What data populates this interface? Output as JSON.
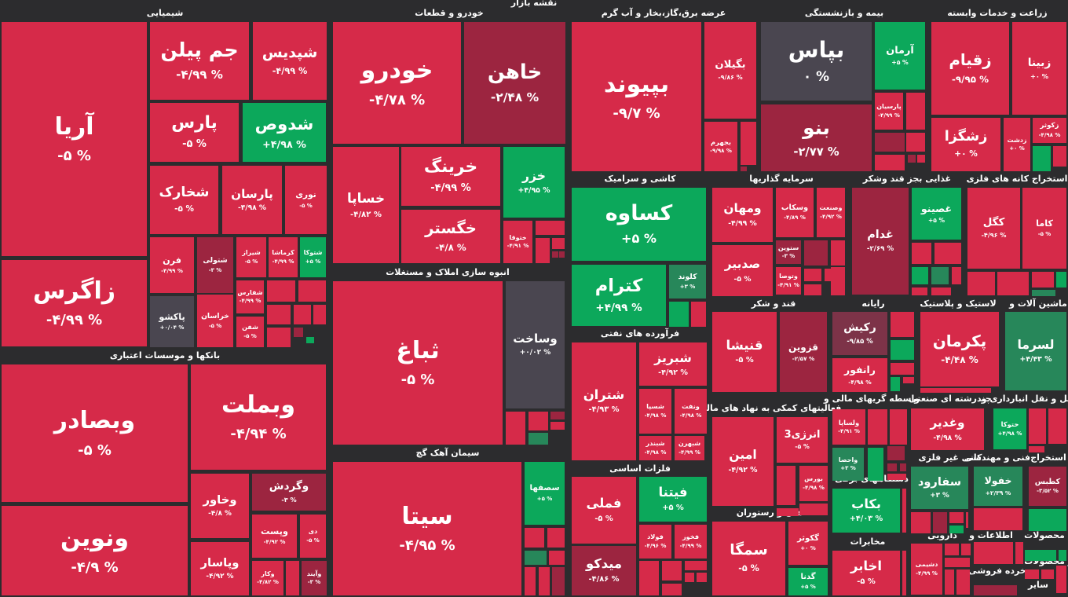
{
  "header": {
    "title": "نقشه بازار"
  },
  "colors": {
    "red": "#d62a49",
    "darkred": "#9c2540",
    "mauve": "#7d3348",
    "gray": "#4a4650",
    "green": "#0ca85b",
    "darkgreen": "#27875a",
    "background": "#2c2c2e"
  },
  "sectors": [
    {
      "title": "شیمیایی"
    },
    {
      "title": "خودرو و قطعات"
    },
    {
      "title": "عرضه برق،گاز،بخار و آب گرم"
    },
    {
      "title": "بیمه و بازنشستگی"
    },
    {
      "title": "زراعت و خدمات وابسته"
    },
    {
      "title": "بانکها و موسسات اعتباری"
    },
    {
      "title": "انبوه سازی املاک و مستغلات"
    },
    {
      "title": "سیمان آهک گچ"
    },
    {
      "title": "کاشی و سرامیک"
    },
    {
      "title": "فرآورده های نفتی"
    },
    {
      "title": "فلزات اساسی"
    },
    {
      "title": "سرمایه گذاریها"
    },
    {
      "title": "غذایی بجز قند وشکر"
    },
    {
      "title": "استخراج کانه های فلزی"
    },
    {
      "title": "قند و شکر"
    },
    {
      "title": "رایانه"
    },
    {
      "title": "لاستیک و پلاستیک"
    },
    {
      "title": "ماشین آلات و"
    },
    {
      "title": "فعالیتهای کمکی به نهاد های مالی"
    },
    {
      "title": "واسطه گریهای مالی و"
    },
    {
      "title": "چندرشته ای صنعتی"
    },
    {
      "title": "حمل و نقل انبارداری و"
    },
    {
      "title": "هتل و رستوران"
    },
    {
      "title": "دستگاههای برقی"
    },
    {
      "title": "مخابرات"
    },
    {
      "title": "کانی غیر فلزی"
    },
    {
      "title": "فنی و مهندسی"
    },
    {
      "title": "استخراج"
    },
    {
      "title": "دارویی"
    },
    {
      "title": "اطلاعات و"
    },
    {
      "title": "محصولات"
    },
    {
      "title": "خرده فروشی"
    },
    {
      "title": "ساير محصولات"
    },
    {
      "title": "سایر"
    }
  ],
  "tiles": [
    {
      "symbol": "آریا",
      "change": "-۵ %",
      "tone": "red"
    },
    {
      "symbol": "زاگرس",
      "change": "-۴/۹۹ %",
      "tone": "red"
    },
    {
      "symbol": "جم پیلن",
      "change": "-۴/۹۹ %",
      "tone": "red"
    },
    {
      "symbol": "شپدیس",
      "change": "-۴/۹۹ %",
      "tone": "red"
    },
    {
      "symbol": "پارس",
      "change": "-۵ %",
      "tone": "red"
    },
    {
      "symbol": "شدوص",
      "change": "+۴/۹۸ %",
      "tone": "green"
    },
    {
      "symbol": "شخارک",
      "change": "-۵ %",
      "tone": "red"
    },
    {
      "symbol": "پارسان",
      "change": "-۴/۹۸ %",
      "tone": "red"
    },
    {
      "symbol": "نوری",
      "change": "-۵ %",
      "tone": "red"
    },
    {
      "symbol": "فرن",
      "change": "-۴/۹۹ %",
      "tone": "red"
    },
    {
      "symbol": "شتولی",
      "change": "-۳ %",
      "tone": "darkred"
    },
    {
      "symbol": "شیراز",
      "change": "-۵ %",
      "tone": "red"
    },
    {
      "symbol": "کرماشا",
      "change": "-۴/۹۹ %",
      "tone": "red"
    },
    {
      "symbol": "شتوکا",
      "change": "+۵ %",
      "tone": "green"
    },
    {
      "symbol": "پاکشو",
      "change": "+۰/۰۴ %",
      "tone": "gray"
    },
    {
      "symbol": "خراسان",
      "change": "-۵ %",
      "tone": "red"
    },
    {
      "symbol": "شفارس",
      "change": "-۴/۹۹ %",
      "tone": "red"
    },
    {
      "symbol": "شفن",
      "change": "-۵ %",
      "tone": "red"
    },
    {
      "symbol": "خودرو",
      "change": "-۴/۷۸ %",
      "tone": "red"
    },
    {
      "symbol": "خاهن",
      "change": "-۲/۴۸ %",
      "tone": "darkred"
    },
    {
      "symbol": "خساپا",
      "change": "-۴/۸۲ %",
      "tone": "red"
    },
    {
      "symbol": "خرینگ",
      "change": "-۴/۹۹ %",
      "tone": "red"
    },
    {
      "symbol": "خگستر",
      "change": "-۴/۸ %",
      "tone": "red"
    },
    {
      "symbol": "خزر",
      "change": "+۴/۹۵ %",
      "tone": "green"
    },
    {
      "symbol": "ختوقا",
      "change": "-۴/۹۱ %",
      "tone": "red"
    },
    {
      "symbol": "ثباغ",
      "change": "-۵ %",
      "tone": "red"
    },
    {
      "symbol": "وساخت",
      "change": "+۰/۰۲ %",
      "tone": "gray"
    },
    {
      "symbol": "سیتا",
      "change": "-۴/۹۵ %",
      "tone": "red"
    },
    {
      "symbol": "سصفها",
      "change": "+۵ %",
      "tone": "green"
    },
    {
      "symbol": "وبصادر",
      "change": "-۵ %",
      "tone": "red"
    },
    {
      "symbol": "ونوین",
      "change": "-۴/۹ %",
      "tone": "red"
    },
    {
      "symbol": "وبملت",
      "change": "-۴/۹۴ %",
      "tone": "red"
    },
    {
      "symbol": "وخاور",
      "change": "-۴/۸ %",
      "tone": "red"
    },
    {
      "symbol": "وگردش",
      "change": "-۳ %",
      "tone": "darkred"
    },
    {
      "symbol": "وپست",
      "change": "-۴/۹۲ %",
      "tone": "red"
    },
    {
      "symbol": "دی",
      "change": "-۵ %",
      "tone": "red"
    },
    {
      "symbol": "وپاسار",
      "change": "-۴/۹۲ %",
      "tone": "red"
    },
    {
      "symbol": "وکار",
      "change": "-۴/۸۲ %",
      "tone": "red"
    },
    {
      "symbol": "وآیند",
      "change": "-۳ %",
      "tone": "darkred"
    },
    {
      "symbol": "بپیوند",
      "change": "-۹/۷ %",
      "tone": "red"
    },
    {
      "symbol": "بگیلان",
      "change": "-۹/۸۶ %",
      "tone": "red"
    },
    {
      "symbol": "بجهرم",
      "change": "-۹/۹۸ %",
      "tone": "red"
    },
    {
      "symbol": "کساوه",
      "change": "+۵ %",
      "tone": "green"
    },
    {
      "symbol": "کترام",
      "change": "+۴/۹۹ %",
      "tone": "green"
    },
    {
      "symbol": "کلوند",
      "change": "+۳ %",
      "tone": "darkgreen"
    },
    {
      "symbol": "شتران",
      "change": "-۴/۹۳ %",
      "tone": "red"
    },
    {
      "symbol": "شبریز",
      "change": "-۴/۹۲ %",
      "tone": "red"
    },
    {
      "symbol": "شسپا",
      "change": "-۴/۹۸ %",
      "tone": "red"
    },
    {
      "symbol": "ونفت",
      "change": "-۴/۹۸ %",
      "tone": "red"
    },
    {
      "symbol": "شبندر",
      "change": "-۴/۹۸ %",
      "tone": "red"
    },
    {
      "symbol": "شبهرن",
      "change": "-۴/۹۹ %",
      "tone": "red"
    },
    {
      "symbol": "فملی",
      "change": "-۵ %",
      "tone": "red"
    },
    {
      "symbol": "فیتنا",
      "change": "+۵ %",
      "tone": "green"
    },
    {
      "symbol": "فولاد",
      "change": "-۴/۹۶ %",
      "tone": "red"
    },
    {
      "symbol": "فخوز",
      "change": "-۴/۹۹ %",
      "tone": "red"
    },
    {
      "symbol": "میدکو",
      "change": "-۴/۸۶ %",
      "tone": "darkred"
    },
    {
      "symbol": "بپاس",
      "change": "۰ %",
      "tone": "gray"
    },
    {
      "symbol": "آرمان",
      "change": "+۵ %",
      "tone": "green"
    },
    {
      "symbol": "بنو",
      "change": "-۲/۷۷ %",
      "tone": "darkred"
    },
    {
      "symbol": "پارسیان",
      "change": "-۴/۹۹ %",
      "tone": "red"
    },
    {
      "symbol": "زقیام",
      "change": "-۹/۹۵ %",
      "tone": "red"
    },
    {
      "symbol": "زبینا",
      "change": "+۰ %",
      "tone": "red"
    },
    {
      "symbol": "زشگزا",
      "change": "+۰ %",
      "tone": "red"
    },
    {
      "symbol": "زدشت",
      "change": "+۰ %",
      "tone": "red"
    },
    {
      "symbol": "زکوثر",
      "change": "-۴/۹۸ %",
      "tone": "red"
    },
    {
      "symbol": "ومهان",
      "change": "-۴/۹۹ %",
      "tone": "red"
    },
    {
      "symbol": "وسکاب",
      "change": "-۴/۸۹ %",
      "tone": "red"
    },
    {
      "symbol": "وصنعت",
      "change": "-۴/۹۲ %",
      "tone": "red"
    },
    {
      "symbol": "صدبیر",
      "change": "-۵ %",
      "tone": "red"
    },
    {
      "symbol": "ستوین",
      "change": "-۳ %",
      "tone": "darkred"
    },
    {
      "symbol": "وتوصا",
      "change": "-۴/۹۱ %",
      "tone": "red"
    },
    {
      "symbol": "غدام",
      "change": "-۲/۶۹ %",
      "tone": "darkred"
    },
    {
      "symbol": "غصینو",
      "change": "+۵ %",
      "tone": "green"
    },
    {
      "symbol": "کگل",
      "change": "-۴/۹۶ %",
      "tone": "red"
    },
    {
      "symbol": "کاما",
      "change": "-۵ %",
      "tone": "red"
    },
    {
      "symbol": "قنیشا",
      "change": "-۵ %",
      "tone": "red"
    },
    {
      "symbol": "قزوین",
      "change": "-۲/۵۷ %",
      "tone": "darkred"
    },
    {
      "symbol": "رکیش",
      "change": "-۹/۸۵ %",
      "tone": "mauve"
    },
    {
      "symbol": "رانفور",
      "change": "-۴/۹۸ %",
      "tone": "red"
    },
    {
      "symbol": "پکرمان",
      "change": "-۴/۴۸ %",
      "tone": "red"
    },
    {
      "symbol": "لسرما",
      "change": "+۴/۴۳ %",
      "tone": "darkgreen"
    },
    {
      "symbol": "امین",
      "change": "-۴/۹۲ %",
      "tone": "red"
    },
    {
      "symbol": "انرژی3",
      "change": "-۵ %",
      "tone": "red"
    },
    {
      "symbol": "بورس",
      "change": "-۴/۹۸ %",
      "tone": "red"
    },
    {
      "symbol": "ولساپا",
      "change": "-۴/۹۱ %",
      "tone": "red"
    },
    {
      "symbol": "واحصا",
      "change": "+۳ %",
      "tone": "darkgreen"
    },
    {
      "symbol": "بکاب",
      "change": "+۴/۰۳ %",
      "tone": "green"
    },
    {
      "symbol": "اخابر",
      "change": "-۵ %",
      "tone": "red"
    },
    {
      "symbol": "سمگا",
      "change": "-۵ %",
      "tone": "red"
    },
    {
      "symbol": "گکوثر",
      "change": "+۰ %",
      "tone": "red"
    },
    {
      "symbol": "گدنا",
      "change": "+۵ %",
      "tone": "green"
    },
    {
      "symbol": "وغدیر",
      "change": "-۴/۹۸ %",
      "tone": "red"
    },
    {
      "symbol": "حتوکا",
      "change": "+۴/۹۸ %",
      "tone": "green"
    },
    {
      "symbol": "سفارود",
      "change": "+۳ %",
      "tone": "darkgreen"
    },
    {
      "symbol": "خفولا",
      "change": "+۲/۳۹ %",
      "tone": "darkgreen"
    },
    {
      "symbol": "کطبس",
      "change": "-۳/۵۲ %",
      "tone": "darkred"
    },
    {
      "symbol": "دشیمی",
      "change": "-۴/۹۹ %",
      "tone": "red"
    }
  ]
}
